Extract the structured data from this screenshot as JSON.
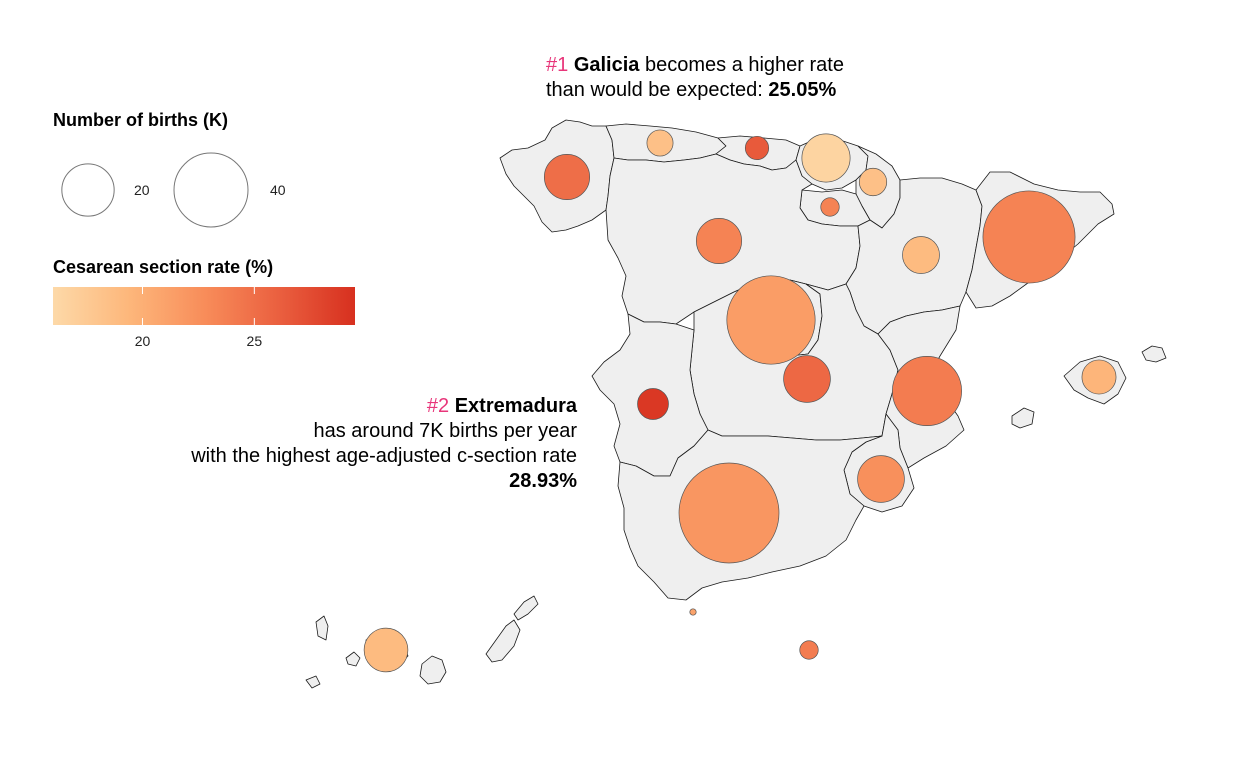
{
  "legend": {
    "size_title": "Number of births (K)",
    "size_items": [
      {
        "value": 20,
        "label": "20"
      },
      {
        "value": 40,
        "label": "40"
      }
    ],
    "color_title": "Cesarean section rate (%)",
    "color_min": 16,
    "color_max": 29.5,
    "color_ticks": [
      {
        "value": 20,
        "label": "20"
      },
      {
        "value": 25,
        "label": "25"
      }
    ],
    "color_stops": [
      "#fdd9a8",
      "#fdb77b",
      "#f88d5a",
      "#ea5f3f",
      "#d7301f"
    ]
  },
  "annotations": {
    "first": {
      "rank": "#1",
      "name": "Galicia",
      "line1_rest": " becomes a higher rate",
      "line2": "than would be expected: ",
      "value": "25.05%"
    },
    "second": {
      "rank": "#2",
      "name": "Extremadura",
      "line2": "has around 7K births per year",
      "line3": "with the highest age-adjusted c-section rate",
      "value": "28.93%"
    }
  },
  "regions_data": [
    {
      "region": "Galicia",
      "births_k": 15,
      "rate": 25.05
    },
    {
      "region": "Asturias",
      "births_k": 5,
      "rate": 18.5
    },
    {
      "region": "Cantabria",
      "births_k": 4,
      "rate": 26.5
    },
    {
      "region": "País Vasco",
      "births_k": 17,
      "rate": 16.5
    },
    {
      "region": "Navarra",
      "births_k": 5.5,
      "rate": 18.5
    },
    {
      "region": "La Rioja",
      "births_k": 2.5,
      "rate": 23.5
    },
    {
      "region": "Castilla y León",
      "births_k": 15,
      "rate": 23.5
    },
    {
      "region": "Aragón",
      "births_k": 10,
      "rate": 19
    },
    {
      "region": "Cataluña",
      "births_k": 62,
      "rate": 23.5
    },
    {
      "region": "Madrid",
      "births_k": 57,
      "rate": 21.5
    },
    {
      "region": "Castilla-La Mancha",
      "births_k": 16,
      "rate": 25.5
    },
    {
      "region": "Extremadura",
      "births_k": 7,
      "rate": 28.93
    },
    {
      "region": "Comunidad Valenciana",
      "births_k": 35,
      "rate": 24
    },
    {
      "region": "Islas Baleares",
      "births_k": 8.5,
      "rate": 19.5
    },
    {
      "region": "Región de Murcia",
      "births_k": 16,
      "rate": 22.5
    },
    {
      "region": "Andalucía",
      "births_k": 73,
      "rate": 22
    },
    {
      "region": "Canarias",
      "births_k": 14,
      "rate": 19
    },
    {
      "region": "Ceuta",
      "births_k": 0.3,
      "rate": 21
    },
    {
      "region": "Melilla",
      "births_k": 2.5,
      "rate": 24
    }
  ],
  "colors": {
    "region_fill": "#efefef",
    "region_stroke": "#1a1a1a",
    "rank_accent": "#e8367a"
  }
}
